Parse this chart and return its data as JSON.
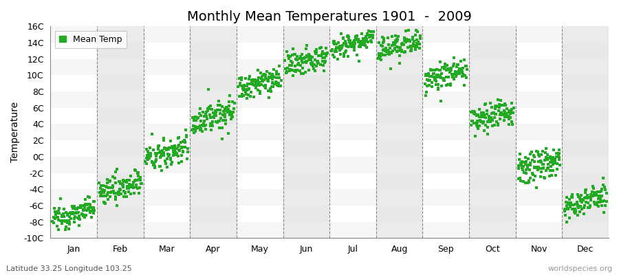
{
  "title": "Monthly Mean Temperatures 1901  -  2009",
  "ylabel": "Temperature",
  "subtitle_left": "Latitude 33.25 Longitude 103.25",
  "subtitle_right": "worldspecies.org",
  "legend_label": "Mean Temp",
  "dot_color": "#22aa22",
  "background_color": "#ffffff",
  "band_color": "#e8e8e8",
  "ylim": [
    -10,
    16
  ],
  "yticks": [
    -10,
    -8,
    -6,
    -4,
    -2,
    0,
    2,
    4,
    6,
    8,
    10,
    12,
    14,
    16
  ],
  "ytick_labels": [
    "-10C",
    "-8C",
    "-6C",
    "-4C",
    "-2C",
    "0C",
    "2C",
    "4C",
    "6C",
    "8C",
    "10C",
    "12C",
    "14C",
    "16C"
  ],
  "months": [
    "Jan",
    "Feb",
    "Mar",
    "Apr",
    "May",
    "Jun",
    "Jul",
    "Aug",
    "Sep",
    "Oct",
    "Nov",
    "Dec"
  ],
  "monthly_means_1901": [
    -7.8,
    -4.5,
    -0.3,
    4.2,
    8.2,
    11.0,
    13.5,
    13.0,
    9.3,
    4.2,
    -1.8,
    -6.2
  ],
  "monthly_means_2009": [
    -6.2,
    -3.0,
    1.3,
    5.8,
    9.8,
    12.5,
    14.5,
    14.0,
    10.7,
    5.8,
    -0.2,
    -4.8
  ],
  "monthly_stds": [
    0.7,
    0.8,
    0.9,
    0.9,
    0.8,
    0.8,
    0.7,
    0.8,
    0.8,
    0.8,
    0.9,
    0.8
  ],
  "n_years": 109,
  "grid_color": "#888888",
  "title_fontsize": 14,
  "axis_fontsize": 10,
  "tick_fontsize": 9
}
